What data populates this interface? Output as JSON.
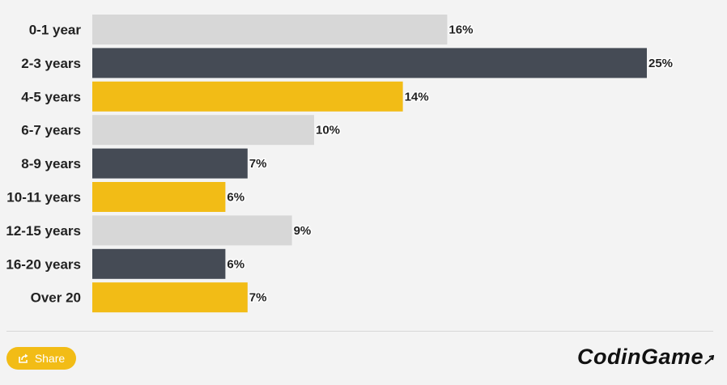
{
  "chart_data": {
    "type": "bar",
    "orientation": "horizontal",
    "categories": [
      "0-1 year",
      "2-3 years",
      "4-5 years",
      "6-7 years",
      "8-9 years",
      "10-11 years",
      "12-15 years",
      "16-20 years",
      "Over 20"
    ],
    "values": [
      16,
      25,
      14,
      10,
      7,
      6,
      9,
      6,
      7
    ],
    "value_labels": [
      "16%",
      "25%",
      "14%",
      "10%",
      "7%",
      "6%",
      "9%",
      "6%",
      "7%"
    ],
    "unit": "%",
    "xlim": [
      0,
      25
    ],
    "grid": false,
    "legend": "none",
    "colors": [
      "#d7d7d7",
      "#454b55",
      "#f2bc16",
      "#d7d7d7",
      "#454b55",
      "#f2bc16",
      "#d7d7d7",
      "#454b55",
      "#f2bc16"
    ]
  },
  "footer": {
    "share_label": "Share",
    "share_icon": "share-icon",
    "share_color": "#f2bc16",
    "logo_text": "CodinGame"
  }
}
